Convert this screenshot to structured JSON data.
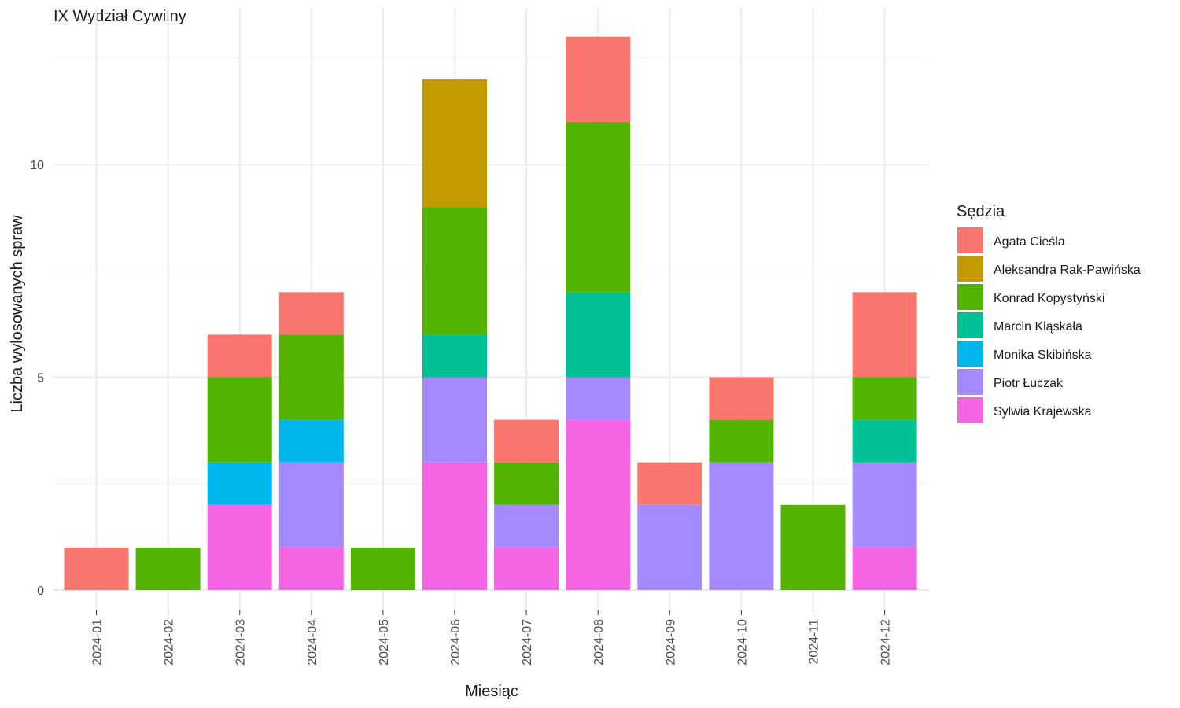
{
  "chart_data": {
    "type": "bar",
    "stacked": true,
    "title": "IX Wydział Cywilny",
    "xlabel": "Miesiąc",
    "ylabel": "Liczba wylosowanych spraw",
    "ylim": [
      0,
      13
    ],
    "yticks": [
      0,
      5,
      10
    ],
    "grid": true,
    "legend_title": "Sędzia",
    "legend_position": "right",
    "categories": [
      "2024-01",
      "2024-02",
      "2024-03",
      "2024-04",
      "2024-05",
      "2024-06",
      "2024-07",
      "2024-08",
      "2024-09",
      "2024-10",
      "2024-11",
      "2024-12"
    ],
    "series": [
      {
        "name": "Sylwia Krajewska",
        "color": "#F564E3",
        "values": [
          0,
          0,
          2,
          1,
          0,
          3,
          1,
          4,
          0,
          0,
          0,
          1
        ]
      },
      {
        "name": "Piotr Łuczak",
        "color": "#A58AFF",
        "values": [
          0,
          0,
          0,
          2,
          0,
          2,
          1,
          1,
          2,
          3,
          0,
          2
        ]
      },
      {
        "name": "Monika Skibińska",
        "color": "#00B6EB",
        "values": [
          0,
          0,
          1,
          1,
          0,
          0,
          0,
          0,
          0,
          0,
          0,
          0
        ]
      },
      {
        "name": "Marcin Kląskała",
        "color": "#00C094",
        "values": [
          0,
          0,
          0,
          0,
          0,
          1,
          0,
          2,
          0,
          0,
          0,
          1
        ]
      },
      {
        "name": "Konrad Kopystyński",
        "color": "#53B400",
        "values": [
          0,
          1,
          2,
          2,
          1,
          3,
          1,
          4,
          0,
          1,
          2,
          1
        ]
      },
      {
        "name": "Aleksandra Rak-Pawińska",
        "color": "#C49A00",
        "values": [
          0,
          0,
          0,
          0,
          0,
          3,
          0,
          0,
          0,
          0,
          0,
          0
        ]
      },
      {
        "name": "Agata Cieśla",
        "color": "#F8766D",
        "values": [
          1,
          0,
          1,
          1,
          0,
          0,
          1,
          2,
          1,
          1,
          0,
          2
        ]
      }
    ],
    "legend_order": [
      "Agata Cieśla",
      "Aleksandra Rak-Pawińska",
      "Konrad Kopystyński",
      "Marcin Kląskała",
      "Monika Skibińska",
      "Piotr Łuczak",
      "Sylwia Krajewska"
    ]
  }
}
